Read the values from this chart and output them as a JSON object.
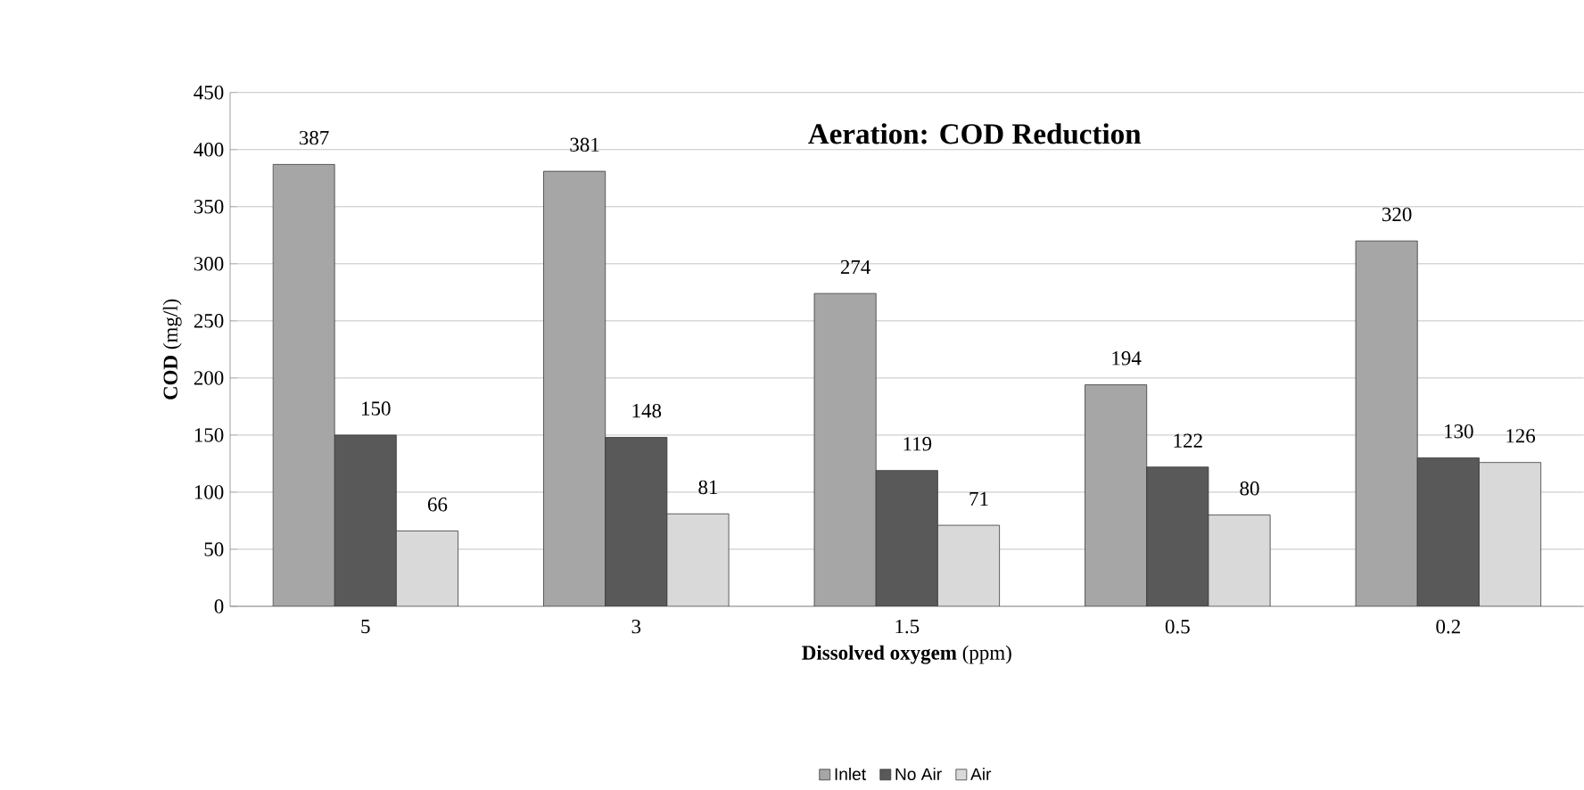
{
  "chart_data": {
    "type": "bar",
    "title": "Aeration: COD  Reduction",
    "xlabel": "**Dissolved oxygem** (ppm)",
    "ylabel": "**COD** (mg/l)",
    "categories": [
      "5",
      "3",
      "1.5",
      "0.5",
      "0.2"
    ],
    "series": [
      {
        "name": "Inlet",
        "color": "#a6a6a6",
        "values": [
          387,
          381,
          274,
          194,
          320
        ]
      },
      {
        "name": "No Air",
        "color": "#595959",
        "values": [
          150,
          148,
          119,
          122,
          130
        ]
      },
      {
        "name": "Air",
        "color": "#d9d9d9",
        "values": [
          66,
          81,
          71,
          80,
          126
        ]
      }
    ],
    "ylim": [
      0,
      450
    ],
    "yticks": [
      0,
      50,
      100,
      150,
      200,
      250,
      300,
      350,
      400,
      450
    ],
    "grid": "y",
    "legend": "bottom",
    "data_labels": true
  }
}
